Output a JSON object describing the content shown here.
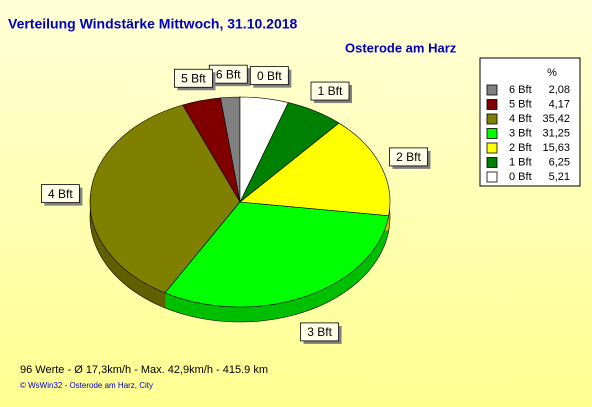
{
  "chart_data": {
    "type": "pie",
    "title": "Verteilung Windstärke  Mittwoch, 31.10.2018",
    "subtitle": "Osterode am Harz",
    "legend_header": "%",
    "categories": [
      "6 Bft",
      "5 Bft",
      "4 Bft",
      "3 Bft",
      "2 Bft",
      "1 Bft",
      "0 Bft"
    ],
    "values": [
      2.08,
      4.17,
      35.42,
      31.25,
      15.63,
      6.25,
      5.21
    ],
    "value_labels": [
      "2,08",
      "4,17",
      "35,42",
      "31,25",
      "15,63",
      "6,25",
      "5,21"
    ],
    "colors": [
      "#808080",
      "#800000",
      "#808000",
      "#00ff00",
      "#ffff00",
      "#008000",
      "#ffffff"
    ],
    "legend": "right",
    "footer": "96 Werte   -   Ø 17,3km/h  -  Max. 42,9km/h   -   415.9 km",
    "credit": "© WsWin32  -  Osterode am Harz, City"
  }
}
